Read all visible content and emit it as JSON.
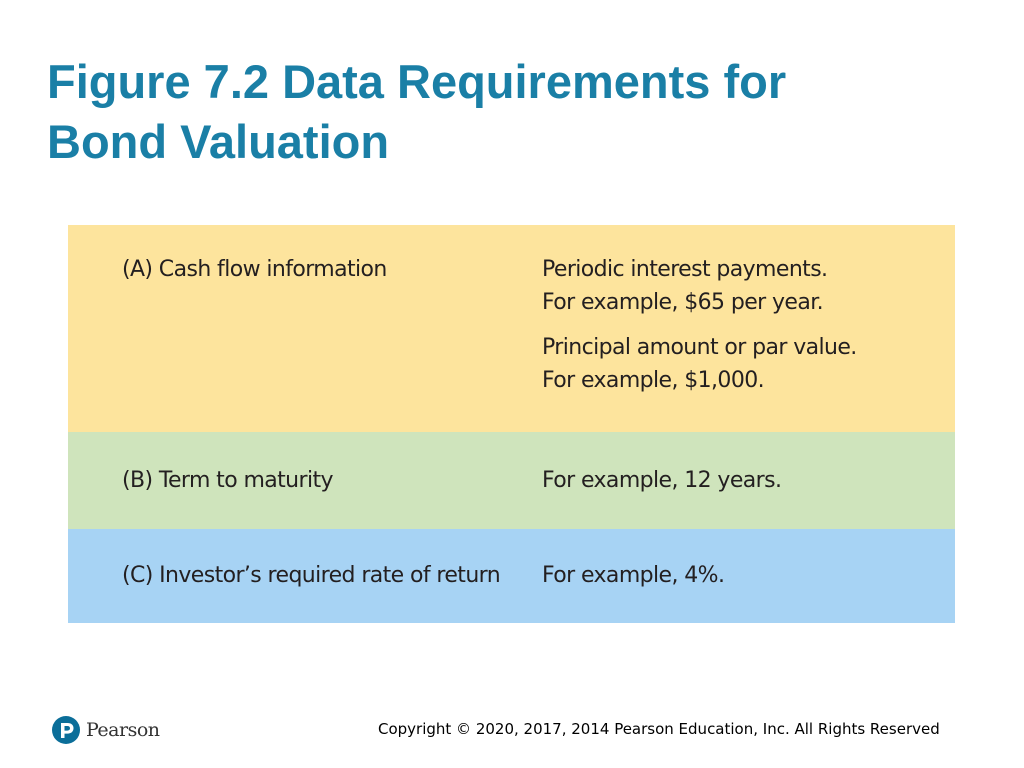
{
  "slide": {
    "title_line1": "Figure 7.2 Data Requirements for",
    "title_line2": "Bond Valuation"
  },
  "figure": {
    "rows": [
      {
        "label": "(A) Cash flow information",
        "details": [
          "Periodic interest payments.",
          "For example, $65 per year.",
          "Principal amount or par value.",
          "For example, $1,000."
        ],
        "color": "#fde49d"
      },
      {
        "label": "(B) Term to maturity",
        "details": [
          "For example, 12 years."
        ],
        "color": "#cfe4bc"
      },
      {
        "label": "(C) Investor’s required rate of return",
        "details": [
          "For example, 4%."
        ],
        "color": "#a7d3f4"
      }
    ]
  },
  "footer": {
    "logo_text": "Pearson",
    "logo_icon": "pearson-p-icon",
    "copyright": "Copyright © 2020, 2017, 2014 Pearson Education, Inc. All Rights Reserved"
  },
  "colors": {
    "title": "#1a7fa6",
    "logo": "#0b6e99"
  }
}
